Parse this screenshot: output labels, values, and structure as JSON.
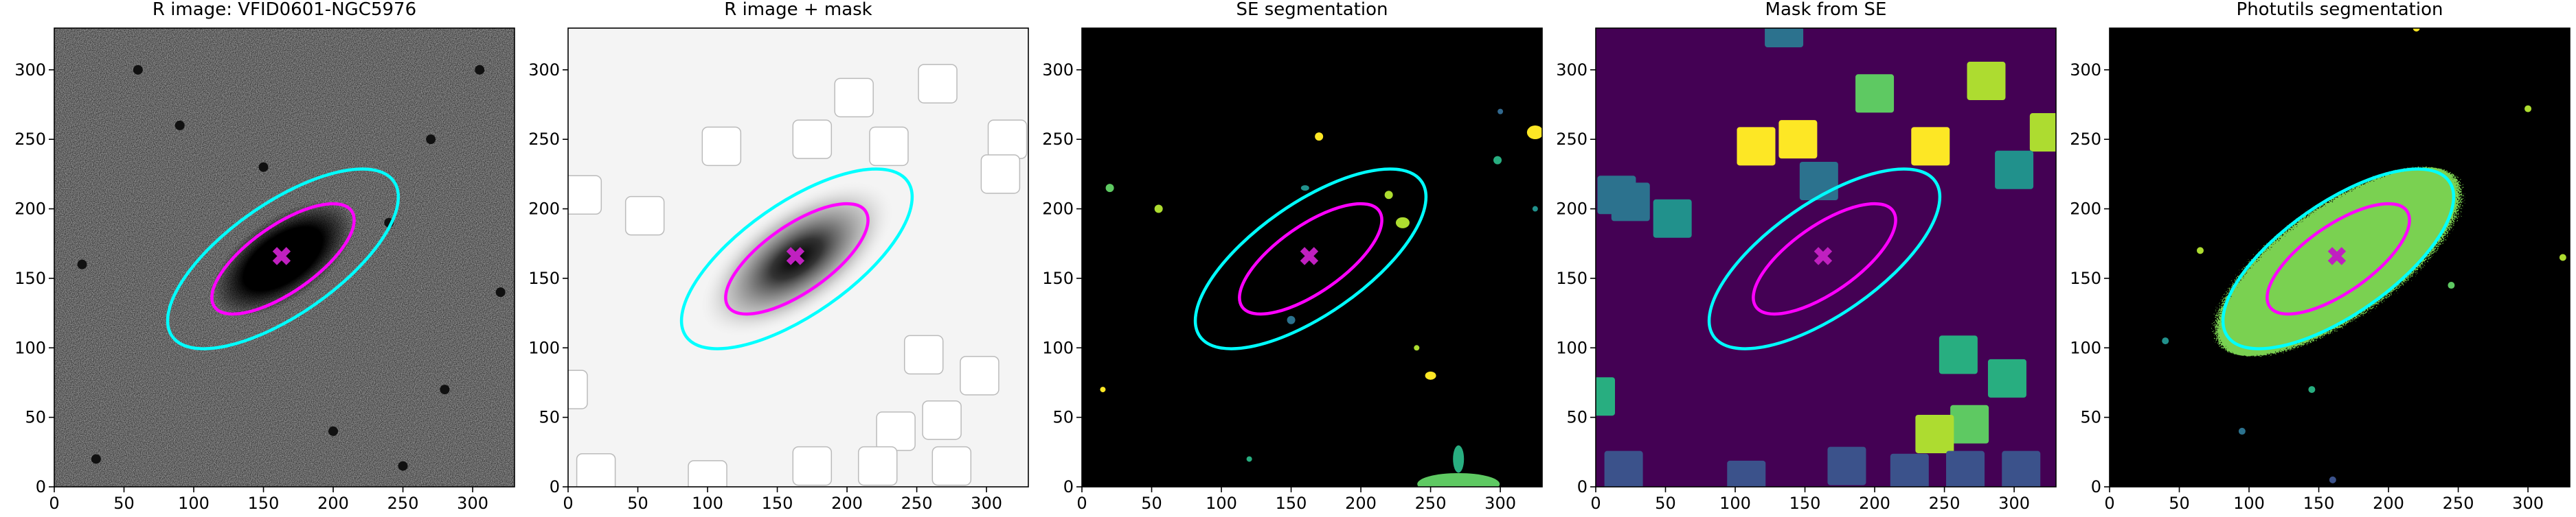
{
  "chart_data": [
    {
      "type": "image",
      "title": "R image: VFID0601-NGC5976",
      "background": "r-image",
      "xlim": [
        0,
        330
      ],
      "ylim": [
        0,
        330
      ],
      "xticks": [
        0,
        50,
        100,
        150,
        200,
        250,
        300
      ],
      "yticks": [
        0,
        50,
        100,
        150,
        200,
        250,
        300
      ],
      "marker": {
        "x": 163,
        "y": 166,
        "color": "#c020c0"
      },
      "ellipses": [
        {
          "color": "#ff00ff",
          "center_x": 164,
          "center_y": 164,
          "semi_major": 60,
          "semi_minor": 24,
          "angle": 35
        },
        {
          "color": "#00ffff",
          "center_x": 164,
          "center_y": 164,
          "semi_major": 97,
          "semi_minor": 40,
          "angle": 35
        }
      ]
    },
    {
      "type": "image",
      "title": "R image + mask",
      "background": "masked",
      "xlim": [
        0,
        330
      ],
      "ylim": [
        0,
        330
      ],
      "xticks": [
        0,
        50,
        100,
        150,
        200,
        250,
        300
      ],
      "yticks": [
        0,
        50,
        100,
        150,
        200,
        250,
        300
      ],
      "marker": {
        "x": 163,
        "y": 166,
        "color": "#c020c0"
      },
      "ellipses": [
        {
          "color": "#ff00ff",
          "center_x": 164,
          "center_y": 164,
          "semi_major": 60,
          "semi_minor": 24,
          "angle": 35
        },
        {
          "color": "#00ffff",
          "center_x": 164,
          "center_y": 164,
          "semi_major": 97,
          "semi_minor": 40,
          "angle": 35
        }
      ]
    },
    {
      "type": "image",
      "title": "SE segmentation",
      "background": "segmentation",
      "xlim": [
        0,
        330
      ],
      "ylim": [
        0,
        330
      ],
      "xticks": [
        0,
        50,
        100,
        150,
        200,
        250,
        300
      ],
      "yticks": [
        0,
        50,
        100,
        150,
        200,
        250,
        300
      ],
      "marker": {
        "x": 163,
        "y": 166,
        "color": "#c020c0"
      },
      "ellipses": [
        {
          "color": "#ff00ff",
          "center_x": 164,
          "center_y": 164,
          "semi_major": 60,
          "semi_minor": 24,
          "angle": 35
        },
        {
          "color": "#00ffff",
          "center_x": 164,
          "center_y": 164,
          "semi_major": 97,
          "semi_minor": 40,
          "angle": 35
        }
      ]
    },
    {
      "type": "image",
      "title": "Mask from SE",
      "background": "mask",
      "xlim": [
        0,
        330
      ],
      "ylim": [
        0,
        330
      ],
      "xticks": [
        0,
        50,
        100,
        150,
        200,
        250,
        300
      ],
      "yticks": [
        0,
        50,
        100,
        150,
        200,
        250,
        300
      ],
      "marker": {
        "x": 163,
        "y": 166,
        "color": "#c020c0"
      },
      "ellipses": [
        {
          "color": "#ff00ff",
          "center_x": 164,
          "center_y": 164,
          "semi_major": 60,
          "semi_minor": 24,
          "angle": 35
        },
        {
          "color": "#00ffff",
          "center_x": 164,
          "center_y": 164,
          "semi_major": 97,
          "semi_minor": 40,
          "angle": 35
        }
      ]
    },
    {
      "type": "image",
      "title": "Photutils segmentation",
      "background": "photutils",
      "xlim": [
        0,
        330
      ],
      "ylim": [
        0,
        330
      ],
      "xticks": [
        0,
        50,
        100,
        150,
        200,
        250,
        300
      ],
      "yticks": [
        0,
        50,
        100,
        150,
        200,
        250,
        300
      ],
      "marker": {
        "x": 163,
        "y": 166,
        "color": "#c020c0"
      },
      "ellipses": [
        {
          "color": "#ff00ff",
          "center_x": 164,
          "center_y": 164,
          "semi_major": 60,
          "semi_minor": 24,
          "angle": 35
        },
        {
          "color": "#00ffff",
          "center_x": 164,
          "center_y": 164,
          "semi_major": 97,
          "semi_minor": 40,
          "angle": 35
        }
      ]
    }
  ]
}
